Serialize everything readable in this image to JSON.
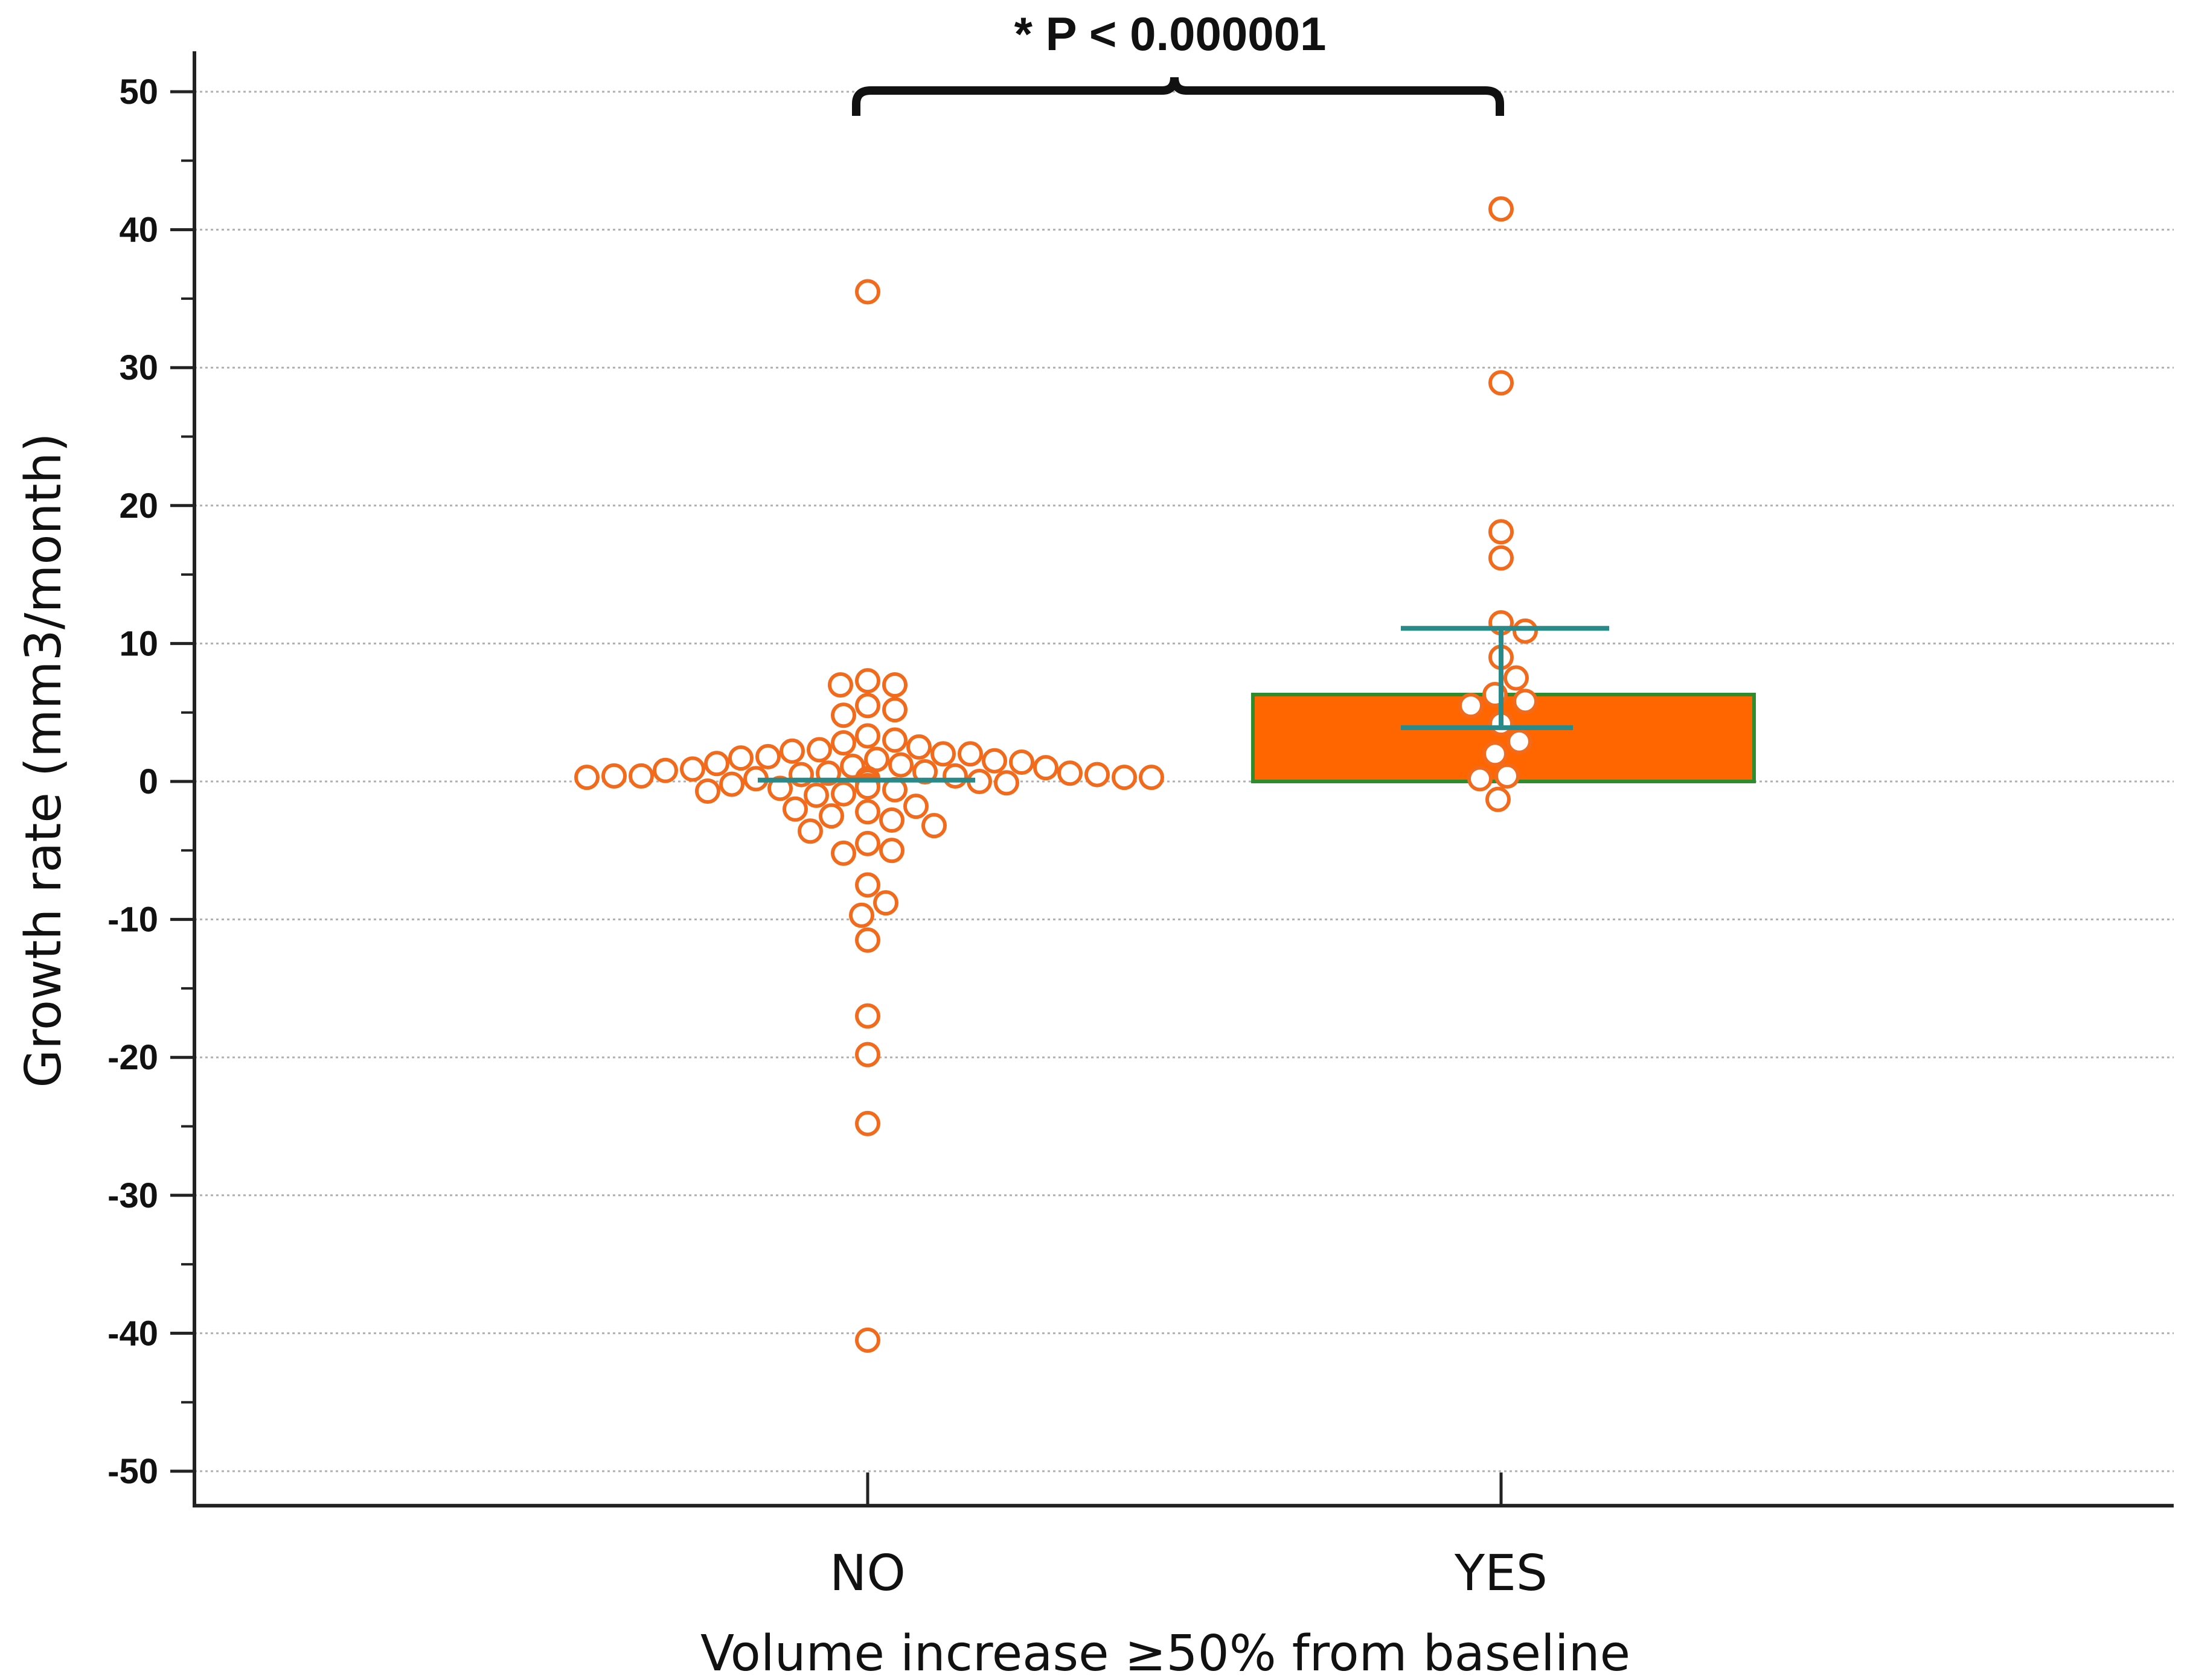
{
  "chart_data": {
    "type": "scatter",
    "title": "",
    "xlabel": "Volume increase ≥50% from baseline",
    "ylabel": "Growth rate (mm3/month)",
    "categories": [
      "NO",
      "YES"
    ],
    "ylim": [
      -52.5,
      53
    ],
    "yticks": [
      50,
      40,
      30,
      20,
      10,
      0,
      -10,
      -20,
      -30,
      -40,
      -50
    ],
    "ytick_labels": [
      "50",
      "40",
      "30",
      "20",
      "10",
      "0",
      "-10",
      "-20",
      "-30",
      "-40",
      "-50"
    ],
    "grid": true,
    "annotation": "* P < 0.000001",
    "colors": {
      "points": "#f26b1d",
      "bar_fill": "#ff6600",
      "bar_edge": "#2e8b2e",
      "error": "#2a8a8a",
      "grid": "#b0b0b0",
      "axis": "#222222"
    },
    "series": [
      {
        "name": "NO",
        "center_line": 0.1,
        "points": [
          35.5,
          7.3,
          7.0,
          7.0,
          5.5,
          5.2,
          4.8,
          3.3,
          3.0,
          2.8,
          2.5,
          2.3,
          2.2,
          2.0,
          2.0,
          1.8,
          1.7,
          1.6,
          1.5,
          1.4,
          1.3,
          1.2,
          1.1,
          1.0,
          0.9,
          0.8,
          0.7,
          0.6,
          0.6,
          0.5,
          0.5,
          0.4,
          0.4,
          0.4,
          0.3,
          0.3,
          0.3,
          0.2,
          0.2,
          0.2,
          0.1,
          0.1,
          0.0,
          0.0,
          0.0,
          -0.1,
          -0.2,
          -0.3,
          -0.4,
          -0.5,
          -0.6,
          -0.7,
          -0.9,
          -1.0,
          -1.8,
          -2.0,
          -2.2,
          -2.5,
          -2.8,
          -3.2,
          -3.6,
          -4.5,
          -5.0,
          -5.2,
          -7.5,
          -8.8,
          -9.7,
          -11.5,
          -17.0,
          -19.8,
          -24.8,
          -40.5
        ]
      },
      {
        "name": "YES",
        "bar_value": 6.3,
        "error_upper": 11.1,
        "error_lower": 3.9,
        "points": [
          41.5,
          28.9,
          18.1,
          16.2,
          11.5,
          10.9,
          9.0,
          7.5,
          6.3,
          5.8,
          5.5,
          4.2,
          2.9,
          2.0,
          0.4,
          0.2,
          -1.3
        ]
      }
    ]
  }
}
